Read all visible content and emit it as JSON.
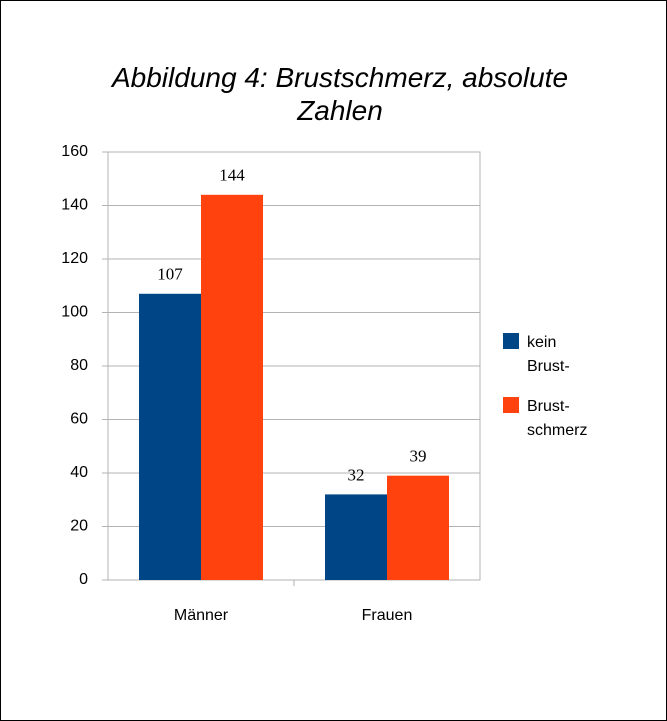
{
  "chart_data": {
    "type": "bar",
    "title": "Abbildung 4: Brustschmerz, absolute Zahlen",
    "categories": [
      "Männer",
      "Frauen"
    ],
    "series": [
      {
        "name": "kein Brust-",
        "color": "#004586",
        "values": [
          107,
          32
        ]
      },
      {
        "name": "Brust-schmerz",
        "color": "#ff420e",
        "values": [
          144,
          39
        ]
      }
    ],
    "ylim": [
      0,
      160
    ],
    "yticks": [
      0,
      20,
      40,
      60,
      80,
      100,
      120,
      140,
      160
    ],
    "grid": true,
    "legend": "right"
  }
}
